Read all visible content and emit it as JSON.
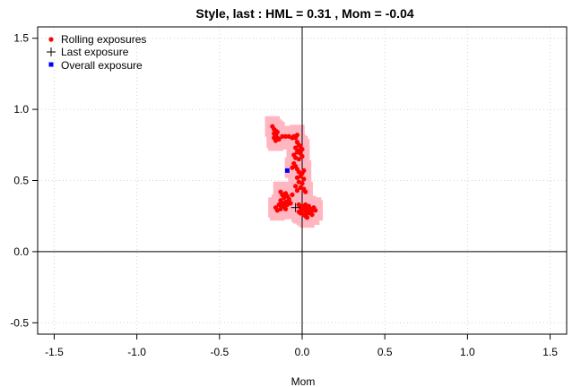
{
  "chart_data": {
    "type": "scatter",
    "title": "Style, last :   HML  =  0.31 ,  Mom  =  -0.04",
    "xlabel": "Mom",
    "ylabel": "",
    "xlim": [
      -1.6,
      1.6
    ],
    "ylim": [
      -0.58,
      1.58
    ],
    "x_ticks": [
      -1.5,
      -1.0,
      -0.5,
      0.0,
      0.5,
      1.0,
      1.5
    ],
    "x_tick_labels": [
      "-1.5",
      "-1.0",
      "-0.5",
      "0.0",
      "0.5",
      "1.0",
      "1.5"
    ],
    "y_ticks": [
      -0.5,
      0.0,
      0.5,
      1.0,
      1.5
    ],
    "y_tick_labels": [
      "-0.5",
      "0.0",
      "0.5",
      "1.0",
      "1.5"
    ],
    "grid": true,
    "reference_lines": {
      "x": 0,
      "y": 0
    },
    "legend_position": "top-left",
    "colors": {
      "rolling": "#ff0000",
      "last": "#000000",
      "overall": "#0000ff",
      "region": "#ffb6c1",
      "grid": "#d3d3d3"
    },
    "series": [
      {
        "name": "Rolling exposures",
        "marker": "circle",
        "points": [
          [
            -0.18,
            0.88
          ],
          [
            -0.17,
            0.86
          ],
          [
            -0.16,
            0.85
          ],
          [
            -0.17,
            0.83
          ],
          [
            -0.16,
            0.82
          ],
          [
            -0.15,
            0.8
          ],
          [
            -0.16,
            0.78
          ],
          [
            -0.17,
            0.8
          ],
          [
            -0.15,
            0.84
          ],
          [
            -0.14,
            0.79
          ],
          [
            -0.12,
            0.81
          ],
          [
            -0.1,
            0.81
          ],
          [
            -0.08,
            0.81
          ],
          [
            -0.05,
            0.81
          ],
          [
            -0.04,
            0.8
          ],
          [
            -0.03,
            0.82
          ],
          [
            -0.06,
            0.8
          ],
          [
            -0.03,
            0.77
          ],
          [
            -0.02,
            0.75
          ],
          [
            -0.01,
            0.74
          ],
          [
            -0.04,
            0.73
          ],
          [
            -0.02,
            0.71
          ],
          [
            0.0,
            0.72
          ],
          [
            -0.03,
            0.7
          ],
          [
            -0.01,
            0.69
          ],
          [
            -0.05,
            0.68
          ],
          [
            -0.04,
            0.66
          ],
          [
            -0.02,
            0.65
          ],
          [
            0.0,
            0.67
          ],
          [
            -0.05,
            0.62
          ],
          [
            -0.04,
            0.6
          ],
          [
            -0.03,
            0.58
          ],
          [
            -0.06,
            0.59
          ],
          [
            -0.02,
            0.56
          ],
          [
            0.0,
            0.55
          ],
          [
            0.01,
            0.57
          ],
          [
            -0.01,
            0.53
          ],
          [
            -0.03,
            0.52
          ],
          [
            0.01,
            0.51
          ],
          [
            -0.02,
            0.49
          ],
          [
            0.0,
            0.48
          ],
          [
            -0.04,
            0.46
          ],
          [
            -0.01,
            0.45
          ],
          [
            0.01,
            0.44
          ],
          [
            -0.03,
            0.43
          ],
          [
            0.02,
            0.42
          ],
          [
            -0.13,
            0.42
          ],
          [
            -0.12,
            0.4
          ],
          [
            -0.1,
            0.41
          ],
          [
            -0.11,
            0.38
          ],
          [
            -0.09,
            0.39
          ],
          [
            -0.13,
            0.36
          ],
          [
            -0.12,
            0.34
          ],
          [
            -0.1,
            0.35
          ],
          [
            -0.08,
            0.37
          ],
          [
            -0.14,
            0.33
          ],
          [
            -0.16,
            0.31
          ],
          [
            -0.15,
            0.29
          ],
          [
            -0.13,
            0.3
          ],
          [
            -0.11,
            0.32
          ],
          [
            -0.09,
            0.33
          ],
          [
            -0.07,
            0.34
          ],
          [
            -0.08,
            0.36
          ],
          [
            -0.12,
            0.32
          ],
          [
            -0.1,
            0.3
          ],
          [
            -0.06,
            0.4
          ],
          [
            -0.02,
            0.33
          ],
          [
            -0.01,
            0.31
          ],
          [
            0.0,
            0.32
          ],
          [
            0.01,
            0.3
          ],
          [
            0.02,
            0.29
          ],
          [
            0.03,
            0.31
          ],
          [
            0.04,
            0.28
          ],
          [
            0.05,
            0.3
          ],
          [
            0.06,
            0.29
          ],
          [
            0.07,
            0.31
          ],
          [
            0.02,
            0.33
          ],
          [
            0.0,
            0.29
          ],
          [
            -0.01,
            0.27
          ],
          [
            0.01,
            0.26
          ],
          [
            0.03,
            0.27
          ],
          [
            0.05,
            0.27
          ],
          [
            0.04,
            0.32
          ],
          [
            0.06,
            0.26
          ],
          [
            -0.02,
            0.28
          ],
          [
            0.02,
            0.25
          ],
          [
            0.08,
            0.29
          ],
          [
            0.03,
            0.24
          ]
        ]
      },
      {
        "name": "Last exposure",
        "marker": "plus",
        "points": [
          [
            -0.04,
            0.31
          ]
        ]
      },
      {
        "name": "Overall exposure",
        "marker": "square",
        "points": [
          [
            -0.09,
            0.57
          ]
        ]
      }
    ]
  }
}
